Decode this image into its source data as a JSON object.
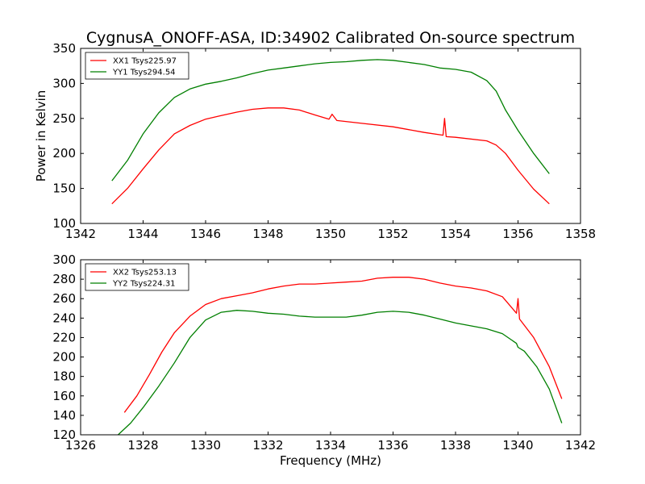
{
  "title": "CygnusA_ONOFF-ASA, ID:34902 Calibrated On-source spectrum",
  "colors": {
    "red": "#ff0000",
    "green": "#007f00",
    "axis": "#000000",
    "background": "#ffffff"
  },
  "chart_data": [
    {
      "type": "line",
      "xlim": [
        1342,
        1358
      ],
      "ylim": [
        100,
        350
      ],
      "xticks": [
        1342,
        1344,
        1346,
        1348,
        1350,
        1352,
        1354,
        1356,
        1358
      ],
      "yticks": [
        100,
        150,
        200,
        250,
        300,
        350
      ],
      "xlabel": "",
      "ylabel": "Power in Kelvin",
      "grid": false,
      "legend_position": "top-left",
      "series": [
        {
          "name": "XX1 Tsys225.97",
          "color": "#ff0000",
          "points": [
            [
              1343.0,
              128
            ],
            [
              1343.5,
              150
            ],
            [
              1344.0,
              178
            ],
            [
              1344.5,
              205
            ],
            [
              1345.0,
              228
            ],
            [
              1345.5,
              240
            ],
            [
              1346.0,
              249
            ],
            [
              1346.5,
              254
            ],
            [
              1347.0,
              259
            ],
            [
              1347.5,
              263
            ],
            [
              1348.0,
              265
            ],
            [
              1348.5,
              265
            ],
            [
              1349.0,
              262
            ],
            [
              1349.5,
              255
            ],
            [
              1349.95,
              249
            ],
            [
              1350.05,
              256
            ],
            [
              1350.2,
              247
            ],
            [
              1351.0,
              243
            ],
            [
              1352.0,
              238
            ],
            [
              1353.0,
              230
            ],
            [
              1353.6,
              226
            ],
            [
              1353.65,
              250
            ],
            [
              1353.7,
              224
            ],
            [
              1354.0,
              223
            ],
            [
              1355.0,
              218
            ],
            [
              1355.3,
              212
            ],
            [
              1355.6,
              200
            ],
            [
              1356.0,
              176
            ],
            [
              1356.5,
              149
            ],
            [
              1357.0,
              128
            ]
          ]
        },
        {
          "name": "YY1 Tsys294.54",
          "color": "#007f00",
          "points": [
            [
              1343.0,
              161
            ],
            [
              1343.5,
              190
            ],
            [
              1344.0,
              228
            ],
            [
              1344.5,
              258
            ],
            [
              1345.0,
              280
            ],
            [
              1345.5,
              292
            ],
            [
              1346.0,
              299
            ],
            [
              1346.5,
              303
            ],
            [
              1347.0,
              308
            ],
            [
              1347.5,
              314
            ],
            [
              1348.0,
              319
            ],
            [
              1348.5,
              322
            ],
            [
              1349.0,
              325
            ],
            [
              1349.5,
              328
            ],
            [
              1350.0,
              330
            ],
            [
              1350.5,
              331
            ],
            [
              1351.0,
              333
            ],
            [
              1351.5,
              334
            ],
            [
              1352.0,
              333
            ],
            [
              1352.5,
              330
            ],
            [
              1353.0,
              327
            ],
            [
              1353.5,
              322
            ],
            [
              1354.0,
              320
            ],
            [
              1354.5,
              316
            ],
            [
              1355.0,
              304
            ],
            [
              1355.3,
              289
            ],
            [
              1355.6,
              262
            ],
            [
              1356.0,
              233
            ],
            [
              1356.5,
              200
            ],
            [
              1357.0,
              171
            ]
          ]
        }
      ]
    },
    {
      "type": "line",
      "xlim": [
        1326,
        1342
      ],
      "ylim": [
        120,
        300
      ],
      "xticks": [
        1326,
        1328,
        1330,
        1332,
        1334,
        1336,
        1338,
        1340,
        1342
      ],
      "yticks": [
        120,
        140,
        160,
        180,
        200,
        220,
        240,
        260,
        280,
        300
      ],
      "xlabel": "Frequency (MHz)",
      "ylabel": "",
      "grid": false,
      "legend_position": "top-left",
      "series": [
        {
          "name": "XX2 Tsys253.13",
          "color": "#ff0000",
          "points": [
            [
              1327.4,
              143
            ],
            [
              1327.8,
              160
            ],
            [
              1328.2,
              182
            ],
            [
              1328.6,
              205
            ],
            [
              1329.0,
              225
            ],
            [
              1329.5,
              242
            ],
            [
              1330.0,
              254
            ],
            [
              1330.5,
              260
            ],
            [
              1331.0,
              263
            ],
            [
              1331.5,
              266
            ],
            [
              1332.0,
              270
            ],
            [
              1332.5,
              273
            ],
            [
              1333.0,
              275
            ],
            [
              1333.5,
              275
            ],
            [
              1334.0,
              276
            ],
            [
              1334.5,
              277
            ],
            [
              1335.0,
              278
            ],
            [
              1335.5,
              281
            ],
            [
              1336.0,
              282
            ],
            [
              1336.5,
              282
            ],
            [
              1337.0,
              280
            ],
            [
              1337.5,
              276
            ],
            [
              1338.0,
              273
            ],
            [
              1338.5,
              271
            ],
            [
              1339.0,
              268
            ],
            [
              1339.5,
              262
            ],
            [
              1339.95,
              245
            ],
            [
              1340.0,
              260
            ],
            [
              1340.05,
              239
            ],
            [
              1340.5,
              220
            ],
            [
              1341.0,
              190
            ],
            [
              1341.4,
              157
            ]
          ]
        },
        {
          "name": "YY2 Tsys224.31",
          "color": "#007f00",
          "points": [
            [
              1327.2,
              120
            ],
            [
              1327.6,
              132
            ],
            [
              1328.0,
              148
            ],
            [
              1328.5,
              170
            ],
            [
              1329.0,
              194
            ],
            [
              1329.5,
              220
            ],
            [
              1330.0,
              238
            ],
            [
              1330.5,
              246
            ],
            [
              1331.0,
              248
            ],
            [
              1331.5,
              247
            ],
            [
              1332.0,
              245
            ],
            [
              1332.5,
              244
            ],
            [
              1333.0,
              242
            ],
            [
              1333.5,
              241
            ],
            [
              1334.0,
              241
            ],
            [
              1334.5,
              241
            ],
            [
              1335.0,
              243
            ],
            [
              1335.5,
              246
            ],
            [
              1336.0,
              247
            ],
            [
              1336.5,
              246
            ],
            [
              1337.0,
              243
            ],
            [
              1337.5,
              239
            ],
            [
              1338.0,
              235
            ],
            [
              1338.5,
              232
            ],
            [
              1339.0,
              229
            ],
            [
              1339.5,
              224
            ],
            [
              1339.95,
              214
            ],
            [
              1340.0,
              210
            ],
            [
              1340.2,
              206
            ],
            [
              1340.6,
              190
            ],
            [
              1341.0,
              167
            ],
            [
              1341.4,
              132
            ]
          ]
        }
      ]
    }
  ]
}
